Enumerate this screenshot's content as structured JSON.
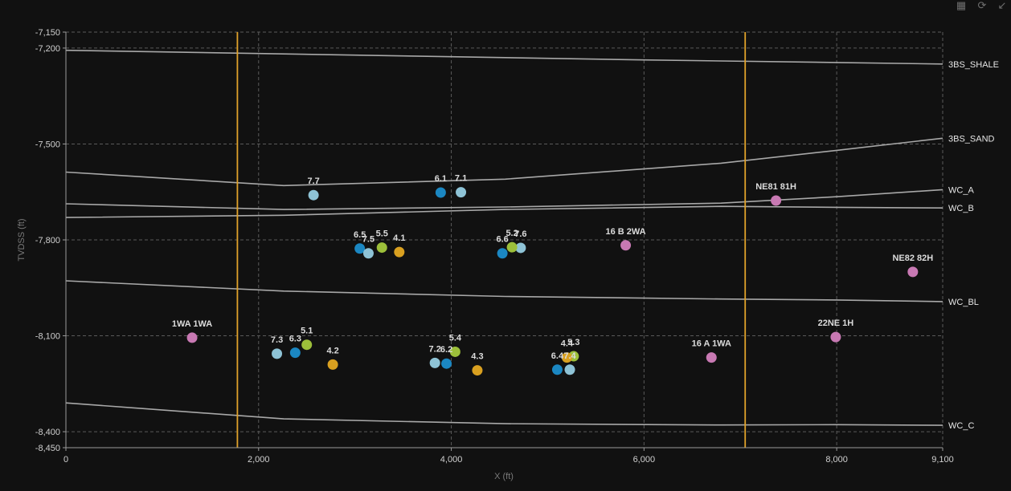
{
  "toolbar": {
    "icons": [
      "focus-icon",
      "refresh-icon",
      "export-icon"
    ]
  },
  "colors": {
    "background": "#111111",
    "grid": "#5a5a5a",
    "horizon": "#a8a8a8",
    "vertical_marker": "#e0a22a",
    "teal": "#1b87c2",
    "light_blue": "#8ec3d6",
    "green": "#9cbf3a",
    "amber": "#d9a020",
    "pink": "#c879b3"
  },
  "chart_data": {
    "type": "scatter",
    "xlabel": "X (ft)",
    "ylabel": "TVDSS (ft)",
    "xlim": [
      0,
      9100
    ],
    "ylim": [
      -8450,
      -7150
    ],
    "y_inverted": true,
    "x_ticks": [
      {
        "value": 0,
        "label": "0"
      },
      {
        "value": 2000,
        "label": "2,000"
      },
      {
        "value": 4000,
        "label": "4,000"
      },
      {
        "value": 6000,
        "label": "6,000"
      },
      {
        "value": 8000,
        "label": "8,000"
      },
      {
        "value": 9100,
        "label": "9,100"
      }
    ],
    "y_ticks": [
      {
        "value": -7150,
        "label": "-7,150"
      },
      {
        "value": -7200,
        "label": "-7,200"
      },
      {
        "value": -7500,
        "label": "-7,500"
      },
      {
        "value": -7800,
        "label": "-7,800"
      },
      {
        "value": -8100,
        "label": "-8,100"
      },
      {
        "value": -8400,
        "label": "-8,400"
      },
      {
        "value": -8450,
        "label": "-8,450"
      }
    ],
    "grid": true,
    "vertical_markers": [
      1780,
      7050
    ],
    "horizons": [
      {
        "name": "3BS_SHALE",
        "points": [
          [
            0,
            -7207
          ],
          [
            2000,
            -7217
          ],
          [
            4000,
            -7227
          ],
          [
            6000,
            -7237
          ],
          [
            8000,
            -7245
          ],
          [
            9100,
            -7250
          ]
        ]
      },
      {
        "name": "3BS_SAND",
        "points": [
          [
            0,
            -7588
          ],
          [
            2260,
            -7630
          ],
          [
            4560,
            -7610
          ],
          [
            6800,
            -7560
          ],
          [
            8000,
            -7520
          ],
          [
            9100,
            -7482
          ]
        ]
      },
      {
        "name": "WC_A",
        "points": [
          [
            0,
            -7687
          ],
          [
            2260,
            -7705
          ],
          [
            4560,
            -7697
          ],
          [
            6800,
            -7685
          ],
          [
            8000,
            -7665
          ],
          [
            9100,
            -7643
          ]
        ]
      },
      {
        "name": "WC_B",
        "points": [
          [
            0,
            -7730
          ],
          [
            2260,
            -7723
          ],
          [
            4560,
            -7705
          ],
          [
            6800,
            -7695
          ],
          [
            8000,
            -7698
          ],
          [
            9100,
            -7700
          ]
        ]
      },
      {
        "name": "WC_BL",
        "points": [
          [
            0,
            -7928
          ],
          [
            2260,
            -7960
          ],
          [
            4560,
            -7977
          ],
          [
            6800,
            -7985
          ],
          [
            8000,
            -7988
          ],
          [
            9100,
            -7993
          ]
        ]
      },
      {
        "name": "WC_C",
        "points": [
          [
            0,
            -8310
          ],
          [
            2260,
            -8360
          ],
          [
            4560,
            -8375
          ],
          [
            6800,
            -8379
          ],
          [
            8000,
            -8378
          ],
          [
            9100,
            -8380
          ]
        ]
      }
    ],
    "series": [
      {
        "name": "Teal",
        "color": "#1b87c2",
        "points": [
          {
            "x": 3890,
            "y": -7652,
            "label": "6.1"
          },
          {
            "x": 3050,
            "y": -7827,
            "label": "6.5"
          },
          {
            "x": 4530,
            "y": -7842,
            "label": "6.6"
          },
          {
            "x": 2380,
            "y": -8153,
            "label": "6.3"
          },
          {
            "x": 3950,
            "y": -8187,
            "label": "6.2"
          },
          {
            "x": 5100,
            "y": -8206,
            "label": "6.4"
          }
        ]
      },
      {
        "name": "Light Blue",
        "color": "#8ec3d6",
        "points": [
          {
            "x": 2570,
            "y": -7660,
            "label": "7.7"
          },
          {
            "x": 4100,
            "y": -7651,
            "label": "7.1"
          },
          {
            "x": 3140,
            "y": -7842,
            "label": "7.5"
          },
          {
            "x": 4720,
            "y": -7825,
            "label": "7.6"
          },
          {
            "x": 2190,
            "y": -8156,
            "label": "7.3"
          },
          {
            "x": 3830,
            "y": -8185,
            "label": "7.2"
          },
          {
            "x": 5230,
            "y": -8206,
            "label": "7.4"
          }
        ]
      },
      {
        "name": "Green",
        "color": "#9cbf3a",
        "points": [
          {
            "x": 3280,
            "y": -7824,
            "label": "5.5"
          },
          {
            "x": 4630,
            "y": -7823,
            "label": "5.2"
          },
          {
            "x": 2500,
            "y": -8128,
            "label": "5.1"
          },
          {
            "x": 4040,
            "y": -8150,
            "label": "5.4"
          },
          {
            "x": 5270,
            "y": -8164,
            "label": "5.3"
          }
        ]
      },
      {
        "name": "Amber",
        "color": "#d9a020",
        "points": [
          {
            "x": 3460,
            "y": -7838,
            "label": "4.1"
          },
          {
            "x": 2770,
            "y": -8190,
            "label": "4.2"
          },
          {
            "x": 4270,
            "y": -8208,
            "label": "4.3"
          },
          {
            "x": 5200,
            "y": -8168,
            "label": "4.4"
          }
        ]
      },
      {
        "name": "Pink",
        "color": "#c879b3",
        "points": [
          {
            "x": 1310,
            "y": -8106,
            "label": "1WA 1WA"
          },
          {
            "x": 5810,
            "y": -7817,
            "label": "16 B 2WA"
          },
          {
            "x": 7370,
            "y": -7677,
            "label": "NE81 81H"
          },
          {
            "x": 8790,
            "y": -7900,
            "label": "NE82 82H"
          },
          {
            "x": 6700,
            "y": -8168,
            "label": "16 A 1WA"
          },
          {
            "x": 7990,
            "y": -8104,
            "label": "22NE 1H"
          }
        ]
      }
    ]
  }
}
